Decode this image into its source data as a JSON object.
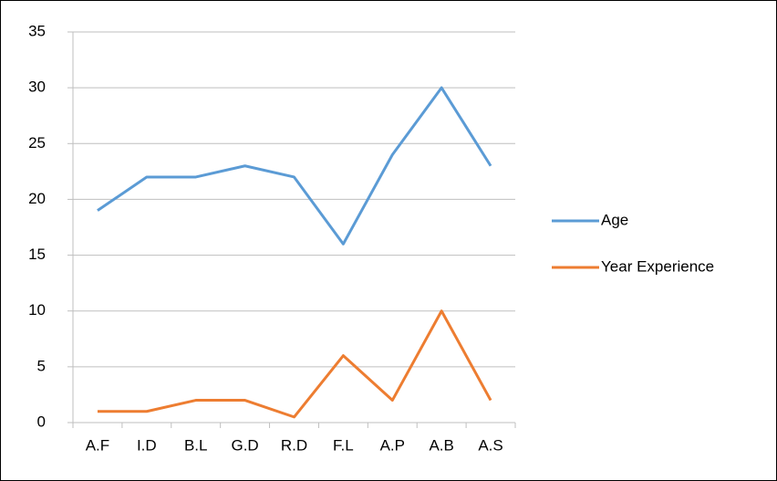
{
  "chart_data": {
    "type": "line",
    "categories": [
      "A.F",
      "I.D",
      "B.L",
      "G.D",
      "R.D",
      "F.L",
      "A.P",
      "A.B",
      "A.S"
    ],
    "series": [
      {
        "name": "Age",
        "color": "#5b9bd5",
        "values": [
          19,
          22,
          22,
          23,
          22,
          16,
          24,
          30,
          23
        ]
      },
      {
        "name": "Year Experience",
        "color": "#ed7d31",
        "values": [
          1,
          1,
          2,
          2,
          0.5,
          6,
          2,
          10,
          2
        ]
      }
    ],
    "ylim": [
      0,
      35
    ],
    "yticks": [
      0,
      5,
      10,
      15,
      20,
      25,
      30,
      35
    ],
    "grid": true,
    "legend": "right"
  }
}
